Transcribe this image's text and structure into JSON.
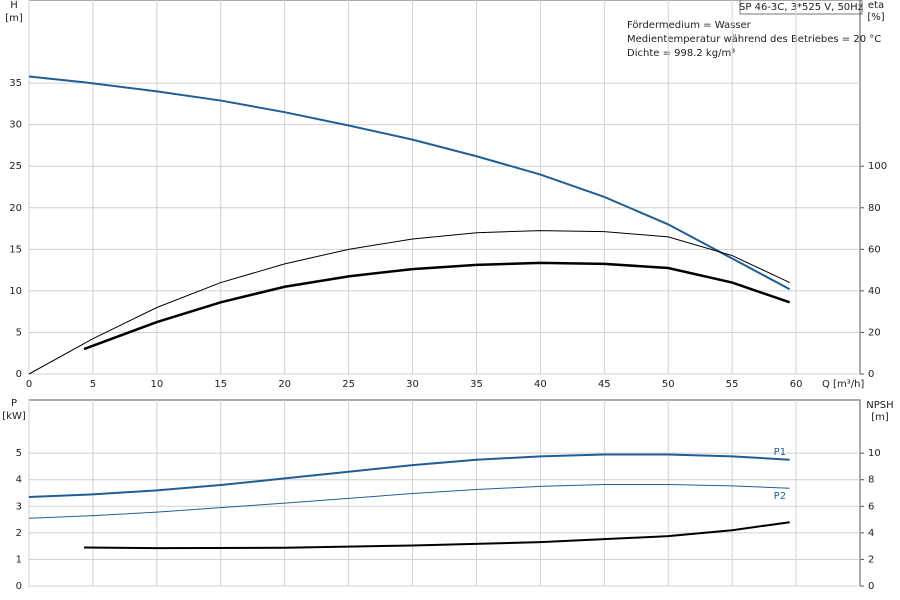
{
  "chart_data": [
    {
      "type": "line",
      "title": "SP 46-3C, 3*525 V, 50Hz",
      "annotations": [
        "Fördermedium = Wasser",
        "Medientemperatur während des Betriebes = 20 °C",
        "Dichte = 998.2 kg/m³"
      ],
      "xlabel": "Q [m³/h]",
      "ylabel": "H",
      "yunit": "[m]",
      "y2label": "eta",
      "y2unit": "[%]",
      "xlim": [
        0,
        65
      ],
      "xticks": [
        0,
        5,
        10,
        15,
        20,
        25,
        30,
        35,
        40,
        45,
        50,
        55,
        60
      ],
      "ylim": [
        0,
        45
      ],
      "yticks": [
        0,
        5,
        10,
        15,
        20,
        25,
        30,
        35
      ],
      "y2lim": [
        0,
        180
      ],
      "y2ticks": [
        0,
        20,
        40,
        60,
        80,
        100
      ],
      "grid": true,
      "series": [
        {
          "color": "#1f5f96",
          "width": 2,
          "x": [
            0,
            4.3,
            10,
            15,
            20,
            25,
            30,
            35,
            40,
            45,
            50,
            55,
            59.5
          ],
          "values": [
            35.8,
            35.1,
            34,
            32.9,
            31.5,
            29.9,
            28.2,
            26.2,
            24,
            21.3,
            18,
            13.9,
            10.2
          ]
        },
        {
          "color": "#000000",
          "width": 1,
          "axis": "y2",
          "x": [
            0,
            5,
            10,
            15,
            20,
            25,
            30,
            35,
            40,
            45,
            50,
            55,
            59.5
          ],
          "values": [
            0,
            17,
            32,
            44,
            53,
            60,
            65,
            68,
            69,
            68.5,
            66,
            57,
            44
          ]
        },
        {
          "color": "#000000",
          "width": 2.5,
          "axis": "y2",
          "x": [
            4.3,
            10,
            15,
            20,
            25,
            30,
            35,
            40,
            45,
            50,
            55,
            59.5
          ],
          "values": [
            12,
            25,
            34.5,
            42,
            47,
            50.5,
            52.5,
            53.5,
            53,
            51,
            44,
            34.5
          ]
        }
      ]
    },
    {
      "type": "line",
      "ylabel": "P",
      "yunit": "[kW]",
      "y2label": "NPSH",
      "y2unit": "[m]",
      "xlim": [
        0,
        65
      ],
      "xticks": [
        0,
        5,
        10,
        15,
        20,
        25,
        30,
        35,
        40,
        45,
        50,
        55,
        60
      ],
      "ylim": [
        0,
        7
      ],
      "yticks": [
        0,
        1,
        2,
        3,
        4,
        5
      ],
      "y2lim": [
        0,
        14
      ],
      "y2ticks": [
        0,
        2,
        4,
        6,
        8,
        10
      ],
      "grid": true,
      "series": [
        {
          "name": "P1",
          "color": "#1f5f96",
          "width": 2,
          "x": [
            0,
            5,
            10,
            15,
            20,
            25,
            30,
            35,
            40,
            45,
            50,
            55,
            59.5
          ],
          "values": [
            3.35,
            3.45,
            3.6,
            3.8,
            4.05,
            4.3,
            4.55,
            4.75,
            4.88,
            4.95,
            4.95,
            4.88,
            4.75
          ]
        },
        {
          "name": "P2",
          "color": "#1f5f96",
          "width": 1,
          "x": [
            0,
            5,
            10,
            15,
            20,
            25,
            30,
            35,
            40,
            45,
            50,
            55,
            59.5
          ],
          "values": [
            2.55,
            2.65,
            2.78,
            2.95,
            3.12,
            3.3,
            3.48,
            3.63,
            3.75,
            3.82,
            3.82,
            3.77,
            3.68
          ]
        },
        {
          "color": "#000000",
          "width": 2,
          "axis": "y2",
          "x": [
            4.3,
            10,
            20,
            30,
            40,
            50,
            55,
            59.5
          ],
          "values": [
            2.9,
            2.85,
            2.88,
            3.05,
            3.3,
            3.75,
            4.2,
            4.8
          ]
        }
      ]
    }
  ]
}
